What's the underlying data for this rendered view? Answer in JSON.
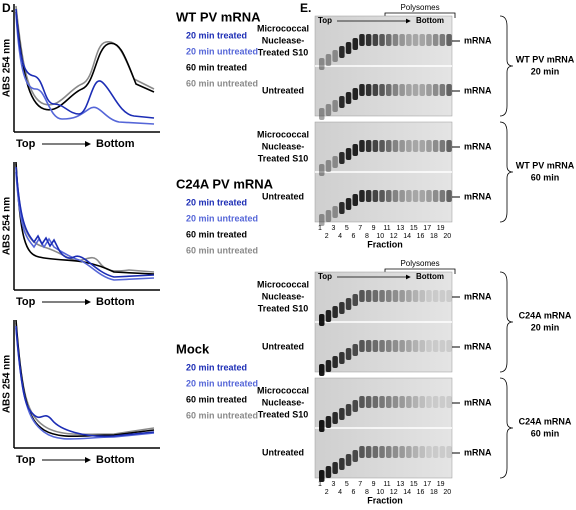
{
  "panel_d": {
    "label": "D.",
    "plots": [
      {
        "title": "WT PV mRNA",
        "y_axis_label": "ABS 254 nm",
        "x_start": "Top",
        "x_end": "Bottom",
        "legend": [
          {
            "name": "20 min treated",
            "color": "#1c2db5"
          },
          {
            "name": "20 min untreated",
            "color": "#5566d8"
          },
          {
            "name": "60 min treated",
            "color": "#000000"
          },
          {
            "name": "60 min untreated",
            "color": "#8a8a8a"
          }
        ]
      },
      {
        "title": "C24A PV mRNA",
        "y_axis_label": "ABS 254 nm",
        "x_start": "Top",
        "x_end": "Bottom",
        "legend": [
          {
            "name": "20 min treated",
            "color": "#1c2db5"
          },
          {
            "name": "20 min untreated",
            "color": "#5566d8"
          },
          {
            "name": "60 min treated",
            "color": "#000000"
          },
          {
            "name": "60 min untreated",
            "color": "#8a8a8a"
          }
        ]
      },
      {
        "title": "Mock",
        "y_axis_label": "ABS 254 nm",
        "x_start": "Top",
        "x_end": "Bottom",
        "legend": [
          {
            "name": "20 min treated",
            "color": "#1c2db5"
          },
          {
            "name": "20 min untreated",
            "color": "#5566d8"
          },
          {
            "name": "60 min treated",
            "color": "#000000"
          },
          {
            "name": "60 min untreated",
            "color": "#8a8a8a"
          }
        ]
      }
    ]
  },
  "panel_e": {
    "label": "E.",
    "gels": [
      {
        "top": "Top",
        "bottom": "Bottom",
        "polysomes": "Polysomes",
        "blocks": [
          {
            "rows": [
              {
                "label": [
                  "Micrococcal",
                  "Nuclease-",
                  "Treated S10"
                ],
                "band": "mRNA"
              },
              {
                "label": [
                  "Untreated"
                ],
                "band": "mRNA"
              }
            ],
            "group": [
              "WT PV mRNA",
              "20 min"
            ]
          },
          {
            "rows": [
              {
                "label": [
                  "Micrococcal",
                  "Nuclease-",
                  "Treated S10"
                ],
                "band": "mRNA"
              },
              {
                "label": [
                  "Untreated"
                ],
                "band": "mRNA"
              }
            ],
            "group": [
              "WT PV mRNA",
              "60 min"
            ]
          }
        ],
        "fractions": [
          1,
          2,
          3,
          4,
          5,
          6,
          7,
          8,
          9,
          10,
          11,
          12,
          13,
          14,
          15,
          16,
          17,
          18,
          19,
          20
        ],
        "fraction_label": "Fraction"
      },
      {
        "top": "Top",
        "bottom": "Bottom",
        "polysomes": "Polysomes",
        "blocks": [
          {
            "rows": [
              {
                "label": [
                  "Micrococcal",
                  "Nuclease-",
                  "Treated S10"
                ],
                "band": "mRNA"
              },
              {
                "label": [
                  "Untreated"
                ],
                "band": "mRNA"
              }
            ],
            "group": [
              "C24A mRNA",
              "20 min"
            ]
          },
          {
            "rows": [
              {
                "label": [
                  "Micrococcal",
                  "Nuclease-",
                  "Treated S10"
                ],
                "band": "mRNA"
              },
              {
                "label": [
                  "Untreated"
                ],
                "band": "mRNA"
              }
            ],
            "group": [
              "C24A mRNA",
              "60 min"
            ]
          }
        ],
        "fractions": [
          1,
          2,
          3,
          4,
          5,
          6,
          7,
          8,
          9,
          10,
          11,
          12,
          13,
          14,
          15,
          16,
          17,
          18,
          19,
          20
        ],
        "fraction_label": "Fraction"
      }
    ]
  }
}
